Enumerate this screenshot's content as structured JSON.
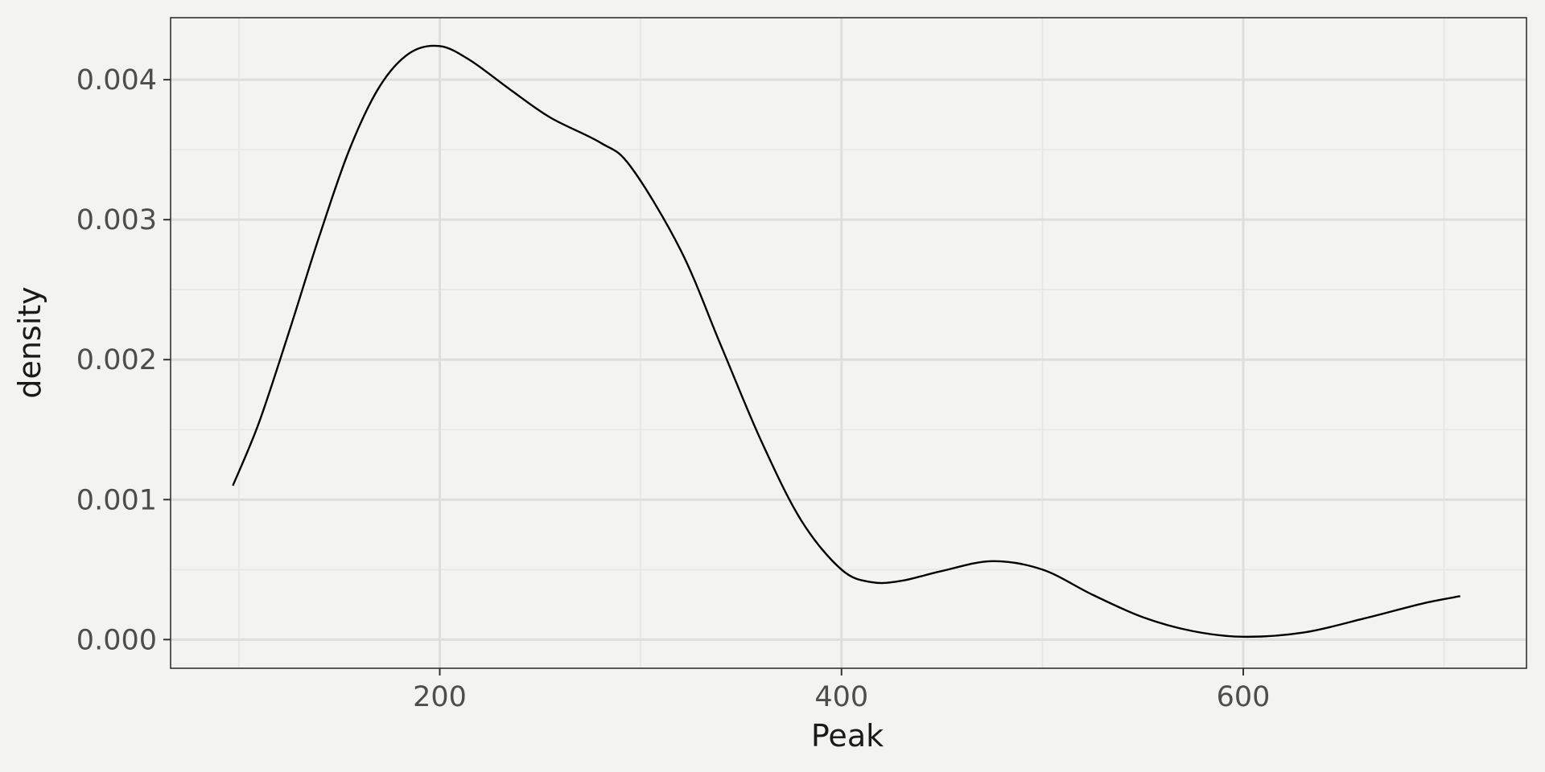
{
  "chart_data": {
    "type": "line",
    "title": "",
    "xlabel": "Peak",
    "ylabel": "density",
    "xlim": [
      66,
      741
    ],
    "ylim": [
      -0.000205,
      0.004443
    ],
    "x_ticks": [
      200,
      400,
      600
    ],
    "x_tick_labels": [
      "200",
      "400",
      "600"
    ],
    "y_ticks": [
      0,
      0.001,
      0.002,
      0.003,
      0.004
    ],
    "y_tick_labels": [
      "0.000",
      "0.001",
      "0.002",
      "0.003",
      "0.004"
    ],
    "grid": true,
    "legend": "none",
    "series": [
      {
        "color": "#000000",
        "x": [
          97,
          110,
          125,
          140,
          155,
          170,
          185,
          200,
          215,
          235,
          255,
          280,
          295,
          320,
          340,
          360,
          380,
          400,
          415,
          430,
          450,
          475,
          500,
          525,
          550,
          575,
          600,
          630,
          660,
          690,
          708
        ],
        "y": [
          0.0011,
          0.00155,
          0.0022,
          0.00288,
          0.0035,
          0.00395,
          0.00419,
          0.00424,
          0.00414,
          0.00393,
          0.00373,
          0.00355,
          0.00338,
          0.00278,
          0.0021,
          0.00142,
          0.00085,
          0.0005,
          0.00041,
          0.00042,
          0.00049,
          0.00056,
          0.0005,
          0.00032,
          0.00016,
          6e-05,
          2e-05,
          5e-05,
          0.00015,
          0.00026,
          0.00031
        ]
      }
    ]
  }
}
